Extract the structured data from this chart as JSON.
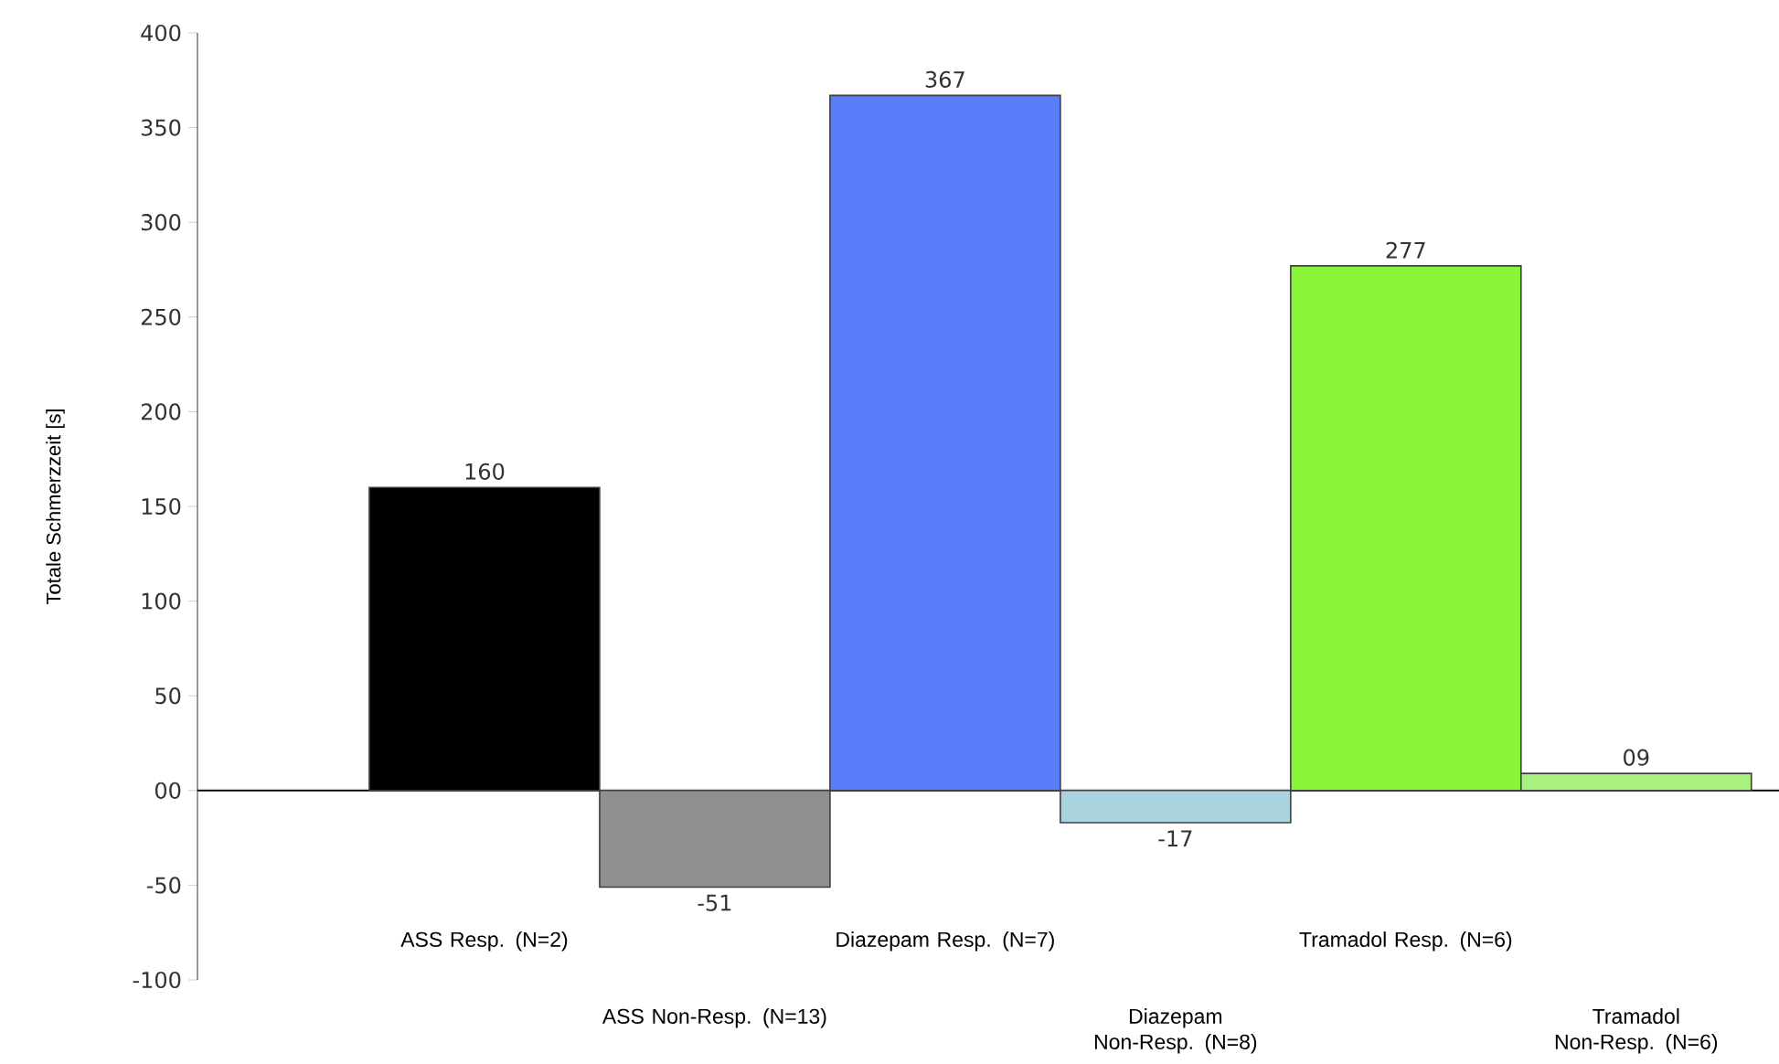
{
  "chart_data": {
    "type": "bar",
    "ylabel": "Totale Schmerzzeit [s]",
    "categories": [
      "ASS Resp. (N=2)",
      "ASS Non-Resp. (N=13)",
      "Diazepam Resp. (N=7)",
      "Diazepam Non-Resp. (N=8)",
      "Tramadol Resp. (N=6)",
      "Tramadol Non-Resp. (N=6)"
    ],
    "values": [
      160,
      -51,
      367,
      -17,
      277,
      9
    ],
    "value_labels": [
      "160",
      "-51",
      "367",
      "-17",
      "277",
      "09"
    ],
    "colors": [
      "#000000",
      "#909090",
      "#5a7dfa",
      "#a9d3df",
      "#88f53a",
      "#a8f080"
    ],
    "ylim": [
      -100,
      400
    ],
    "yticks": [
      -100,
      -50,
      {
        "value": 0,
        "label": "00"
      },
      50,
      100,
      150,
      200,
      250,
      300,
      350,
      400
    ]
  }
}
